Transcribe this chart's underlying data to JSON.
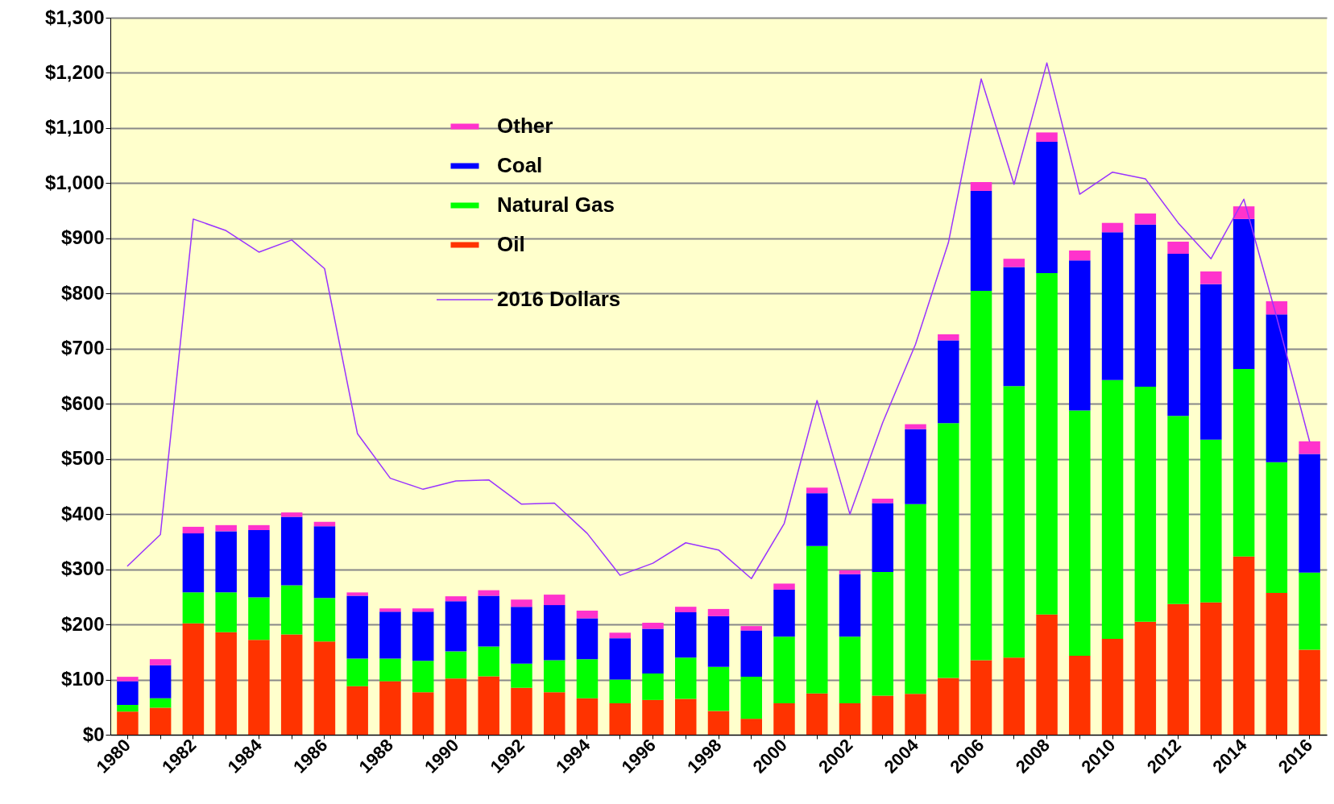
{
  "chart_data": {
    "type": "bar",
    "stacked": true,
    "legend": "top left",
    "grid": "y",
    "categories": [
      "1980",
      null,
      "1982",
      null,
      "1984",
      null,
      "1986",
      null,
      "1988",
      null,
      "1990",
      null,
      "1992",
      null,
      "1994",
      null,
      "1996",
      null,
      "1998",
      null,
      "2000",
      null,
      "2002",
      null,
      "2004",
      null,
      "2006",
      null,
      "2008",
      null,
      "2010",
      null,
      "2012",
      null,
      "2014",
      null,
      "2016"
    ],
    "ylim": [
      0,
      1300
    ],
    "yticks": [
      {
        "value": 0,
        "label": "$0"
      },
      {
        "value": 100,
        "label": "$100"
      },
      {
        "value": 200,
        "label": "$200"
      },
      {
        "value": 300,
        "label": "$300"
      },
      {
        "value": 400,
        "label": "$400"
      },
      {
        "value": 500,
        "label": "$500"
      },
      {
        "value": 600,
        "label": "$600"
      },
      {
        "value": 700,
        "label": "$700"
      },
      {
        "value": 800,
        "label": "$800"
      },
      {
        "value": 900,
        "label": "$900"
      },
      {
        "value": 1000,
        "label": "$1,000"
      },
      {
        "value": 1100,
        "label": "$1,100"
      },
      {
        "value": 1200,
        "label": "$1,200"
      },
      {
        "value": 1300,
        "label": "$1,300"
      }
    ],
    "series": [
      {
        "name": "Oil",
        "color": "#ff3300",
        "values": [
          42,
          49,
          202,
          186,
          172,
          182,
          169,
          88,
          97,
          77,
          102,
          106,
          85,
          77,
          66,
          57,
          63,
          65,
          43,
          29,
          57,
          75,
          57,
          71,
          74,
          103,
          135,
          140,
          218,
          143,
          174,
          205,
          237,
          240,
          323,
          257,
          154
        ]
      },
      {
        "name": "Natural Gas",
        "color": "#00ff00",
        "values": [
          12,
          17,
          56,
          72,
          77,
          89,
          79,
          50,
          41,
          57,
          49,
          54,
          44,
          58,
          71,
          43,
          48,
          75,
          80,
          76,
          121,
          267,
          121,
          224,
          344,
          462,
          670,
          492,
          619,
          445,
          469,
          426,
          341,
          295,
          340,
          237,
          140
        ]
      },
      {
        "name": "Coal",
        "color": "#0000ff",
        "values": [
          43,
          60,
          107,
          111,
          122,
          124,
          130,
          114,
          85,
          89,
          91,
          92,
          103,
          100,
          74,
          75,
          81,
          82,
          92,
          84,
          85,
          96,
          113,
          125,
          136,
          150,
          181,
          216,
          238,
          272,
          268,
          294,
          294,
          282,
          272,
          268,
          215
        ]
      },
      {
        "name": "Other",
        "color": "#ff33cc",
        "values": [
          8,
          11,
          12,
          11,
          9,
          8,
          8,
          6,
          6,
          6,
          9,
          10,
          13,
          19,
          14,
          10,
          11,
          10,
          13,
          8,
          11,
          10,
          7,
          8,
          9,
          11,
          16,
          15,
          17,
          18,
          17,
          20,
          22,
          23,
          23,
          24,
          23
        ]
      },
      {
        "name": "2016 Dollars",
        "type": "line",
        "color": "#9933ff",
        "values": [
          306,
          363,
          935,
          914,
          875,
          897,
          845,
          546,
          465,
          445,
          460,
          462,
          418,
          420,
          365,
          289,
          311,
          348,
          335,
          283,
          383,
          606,
          400,
          566,
          708,
          892,
          1189,
          998,
          1218,
          980,
          1020,
          1008,
          928,
          863,
          971,
          757,
          532
        ]
      }
    ]
  }
}
